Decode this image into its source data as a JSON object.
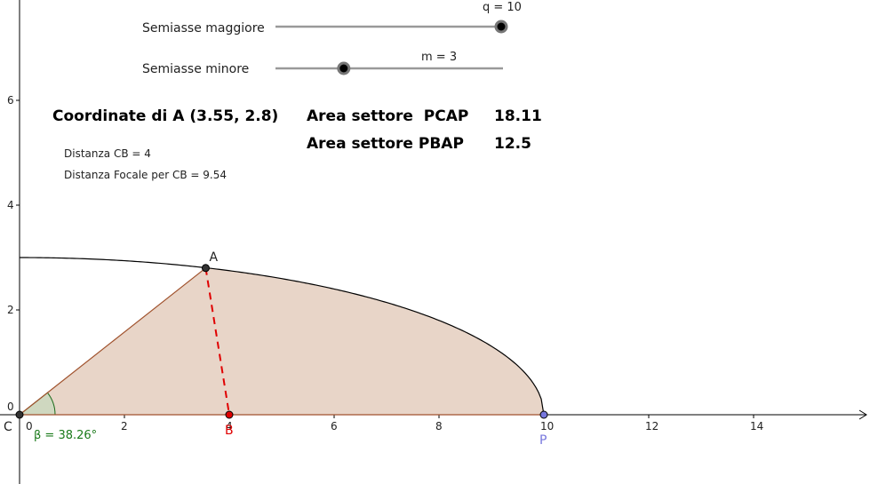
{
  "sliders": {
    "major": {
      "label": "Semiasse maggiore",
      "value_text": "q = 10",
      "value": 10,
      "min": 0,
      "max": 10
    },
    "minor": {
      "label": "Semiasse minore",
      "value_text": "m = 3",
      "value": 3,
      "min": 0,
      "max": 10
    }
  },
  "info": {
    "coords": "Coordinate di A (3.55, 2.8)",
    "area_pcap_label": "Area settore  PCAP",
    "area_pcap_value": "18.11",
    "area_pbap_label": "Area settore PBAP",
    "area_pbap_value": "12.5",
    "dist_cb": "Distanza CB = 4",
    "dist_focal": "Distanza Focale per CB = 9.54"
  },
  "axes": {
    "x_ticks": [
      "0",
      "2",
      "4",
      "6",
      "8",
      "10",
      "12",
      "14"
    ],
    "y_ticks": [
      "0",
      "2",
      "4",
      "6"
    ]
  },
  "points": {
    "C": {
      "label": "C",
      "x": 0,
      "y": 0
    },
    "A": {
      "label": "A",
      "x": 3.55,
      "y": 2.8
    },
    "B": {
      "label": "B",
      "x": 4,
      "y": 0
    },
    "P": {
      "label": "P",
      "x": 10,
      "y": 0
    }
  },
  "angle": {
    "label": "β = 38.26°"
  },
  "colors": {
    "sector_fill": "#e8d5c8",
    "sector_edge": "#a0522d",
    "point_B": "#e00000",
    "point_P": "#7777dd",
    "angle_fill": "#cfd8c0",
    "angle_text": "#1a7a1a"
  }
}
